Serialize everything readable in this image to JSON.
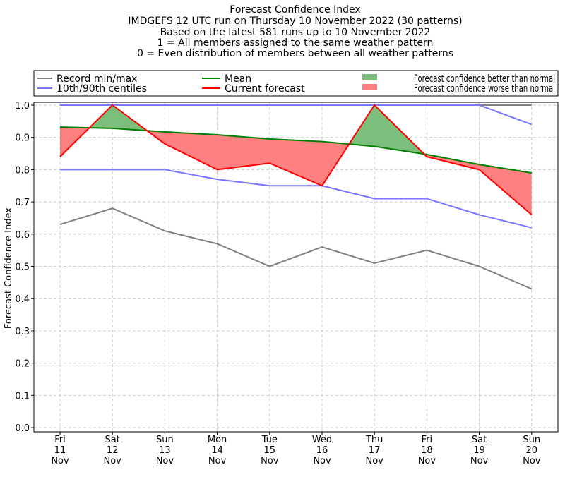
{
  "chart_data": {
    "type": "line",
    "title_lines": [
      "Forecast Confidence Index",
      "IMDGEFS 12 UTC run on Thursday 10 November 2022 (30 patterns)",
      "Based on the latest 581 runs up to 10 November 2022",
      "1 = All members assigned to the same weather pattern",
      "0 = Even distribution of members between all weather patterns"
    ],
    "ylabel": "Forecast Confidence Index",
    "xlabel": "",
    "ylim": [
      0,
      1
    ],
    "yticks": [
      "0.0",
      "0.1",
      "0.2",
      "0.3",
      "0.4",
      "0.5",
      "0.6",
      "0.7",
      "0.8",
      "0.9",
      "1.0"
    ],
    "categories": [
      [
        "Fri",
        "11",
        "Nov"
      ],
      [
        "Sat",
        "12",
        "Nov"
      ],
      [
        "Sun",
        "13",
        "Nov"
      ],
      [
        "Mon",
        "14",
        "Nov"
      ],
      [
        "Tue",
        "15",
        "Nov"
      ],
      [
        "Wed",
        "16",
        "Nov"
      ],
      [
        "Thu",
        "17",
        "Nov"
      ],
      [
        "Fri",
        "18",
        "Nov"
      ],
      [
        "Sat",
        "19",
        "Nov"
      ],
      [
        "Sun",
        "20",
        "Nov"
      ]
    ],
    "grid": true,
    "legend_position": "top",
    "series": [
      {
        "name": "Record min/max",
        "color": "#808080",
        "values_min": [
          0.63,
          0.68,
          0.61,
          0.57,
          0.5,
          0.56,
          0.51,
          0.55,
          0.5,
          0.43
        ],
        "values_max": [
          1,
          1,
          1,
          1,
          1,
          1,
          1,
          1,
          1,
          1
        ]
      },
      {
        "name": "10th/90th centiles",
        "color": "#7777ff",
        "values_min": [
          0.8,
          0.8,
          0.8,
          0.77,
          0.75,
          0.75,
          0.71,
          0.71,
          0.66,
          0.62
        ],
        "values_max": [
          1,
          1,
          1,
          1,
          1,
          1,
          1,
          1,
          1,
          0.94
        ]
      },
      {
        "name": "Mean",
        "color": "#008000",
        "values": [
          0.932,
          0.928,
          0.917,
          0.908,
          0.895,
          0.887,
          0.872,
          0.847,
          0.816,
          0.79
        ]
      },
      {
        "name": "Current forecast",
        "color": "#ff0000",
        "values": [
          0.84,
          1.0,
          0.88,
          0.8,
          0.82,
          0.75,
          1.0,
          0.84,
          0.8,
          0.66
        ]
      }
    ],
    "fills": [
      {
        "name": "Forecast confidence better than normal",
        "color": "#7cbf7c"
      },
      {
        "name": "Forecast confidence worse than normal",
        "color": "#ff8080"
      }
    ]
  }
}
